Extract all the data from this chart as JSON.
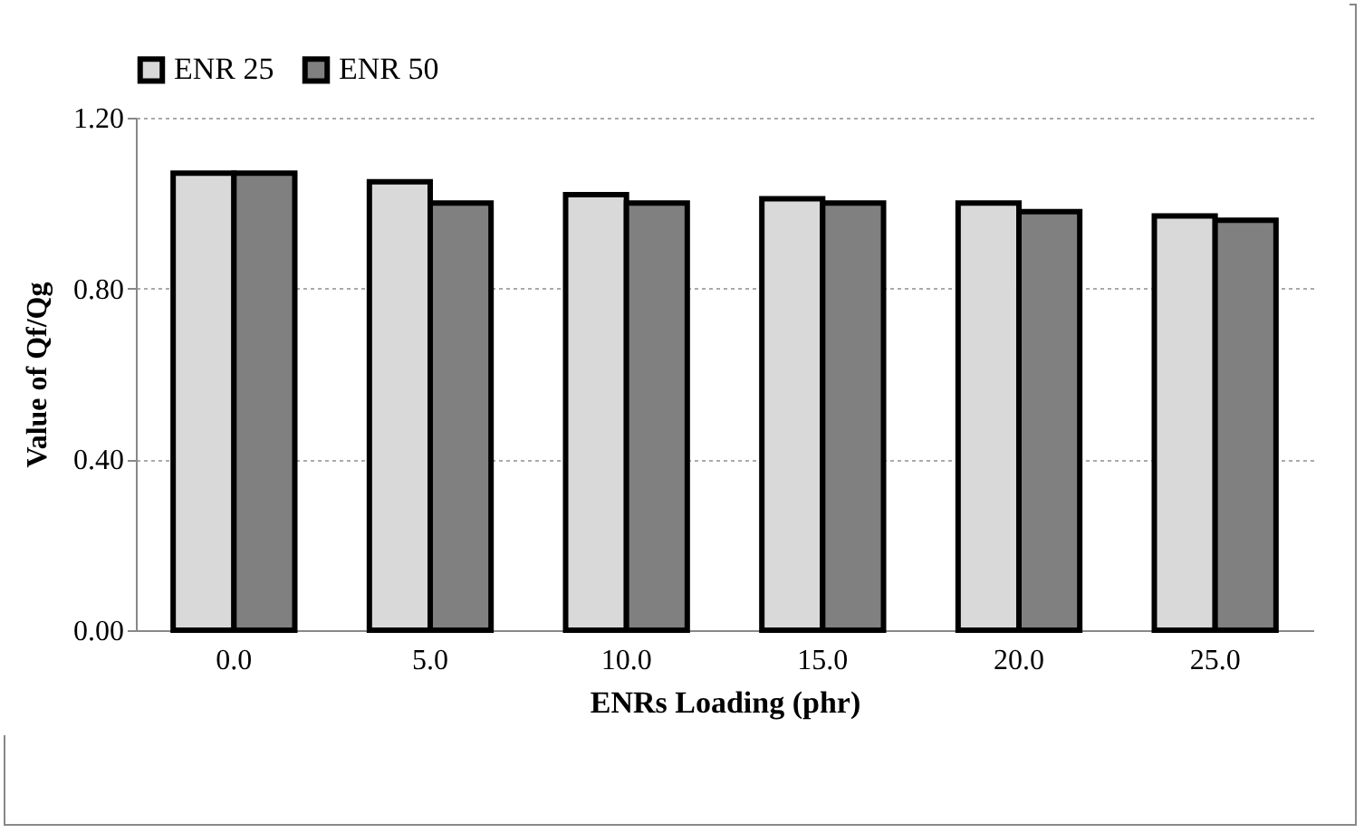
{
  "chart_data": {
    "type": "bar",
    "xlabel": "ENRs Loading (phr)",
    "ylabel": "Value of Qf/Qg",
    "categories": [
      "0.0",
      "5.0",
      "10.0",
      "15.0",
      "20.0",
      "25.0"
    ],
    "series": [
      {
        "name": "ENR 25",
        "color": "#d9d9d9",
        "values": [
          1.07,
          1.05,
          1.02,
          1.01,
          1.0,
          0.97
        ]
      },
      {
        "name": "ENR 50",
        "color": "#808080",
        "values": [
          1.07,
          1.0,
          1.0,
          1.0,
          0.98,
          0.96
        ]
      }
    ],
    "ylim": [
      0,
      1.2
    ],
    "yticks": [
      {
        "value": 0,
        "label": "0.00"
      },
      {
        "value": 0.4,
        "label": "0.40"
      },
      {
        "value": 0.8,
        "label": "0.80"
      },
      {
        "value": 1.2,
        "label": "1.20"
      }
    ],
    "grid": "y",
    "legend": "top"
  }
}
